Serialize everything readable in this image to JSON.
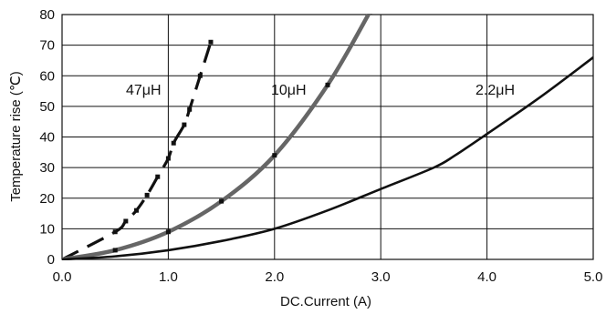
{
  "chart_data": {
    "type": "line",
    "title": "",
    "xlabel": "DC.Current (A)",
    "ylabel": "Temperature rise (℃)",
    "xlim": [
      0,
      5
    ],
    "ylim": [
      0,
      80
    ],
    "x_ticks": [
      "0.0",
      "1.0",
      "2.0",
      "3.0",
      "4.0",
      "5.0"
    ],
    "y_ticks": [
      "0",
      "10",
      "20",
      "30",
      "40",
      "50",
      "60",
      "70",
      "80"
    ],
    "grid": true,
    "series": [
      {
        "name": "47μH",
        "color": "#111111",
        "style": "dashed-with-square-markers",
        "x": [
          0,
          0.5,
          0.6,
          0.7,
          0.8,
          0.9,
          1.0,
          1.05,
          1.15,
          1.2,
          1.3,
          1.4
        ],
        "y": [
          0,
          9,
          12.5,
          16,
          21,
          27,
          33,
          38,
          44,
          49,
          60,
          71
        ]
      },
      {
        "name": "10μH",
        "color": "#666666",
        "style": "thick-with-square-markers",
        "x": [
          0,
          0.5,
          1.0,
          1.5,
          2.0,
          2.5,
          2.9
        ],
        "y": [
          0,
          3,
          9,
          19,
          34,
          57,
          81
        ]
      },
      {
        "name": "2.2μH",
        "color": "#111111",
        "style": "solid",
        "x": [
          0,
          0.5,
          1.0,
          1.5,
          2.0,
          2.5,
          3.0,
          3.5,
          3.7,
          4.0,
          4.5,
          5.0
        ],
        "y": [
          0,
          1,
          3,
          6,
          10,
          16,
          23,
          30,
          34,
          41,
          53,
          66
        ]
      }
    ]
  }
}
